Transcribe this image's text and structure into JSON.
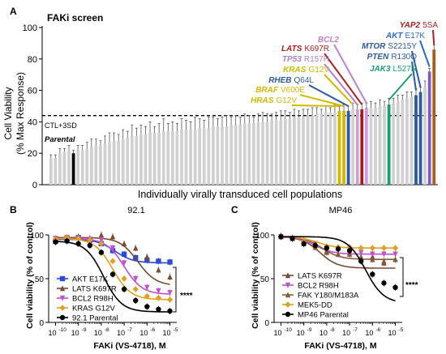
{
  "chart_data": [
    {
      "panel": "A",
      "type": "bar",
      "title": "FAKi screen",
      "xlabel": "Individually virally transduced cell populations",
      "ylabel_line1": "Cell Viability",
      "ylabel_line2": "(% Max Response)",
      "ylim": [
        0,
        100
      ],
      "yticks": [
        "0",
        "20",
        "40",
        "60",
        "80",
        "100"
      ],
      "threshold": {
        "label": "CTL+3SD",
        "value": 44
      },
      "parental_label": "Parental",
      "values": [
        17,
        17,
        20,
        21,
        22,
        20,
        22,
        22,
        23,
        24,
        25,
        25,
        26,
        27,
        28,
        28,
        29,
        30,
        31,
        31,
        32,
        32,
        33,
        33,
        33,
        34,
        34,
        34,
        34,
        35,
        35,
        35,
        35,
        36,
        36,
        36,
        37,
        37,
        37,
        37,
        38,
        38,
        38,
        39,
        39,
        39,
        40,
        40,
        40,
        41,
        41,
        41,
        42,
        42,
        43,
        43,
        43,
        44,
        44,
        45,
        45,
        46,
        46,
        46,
        47,
        47,
        47,
        48,
        48,
        48,
        49,
        49,
        49,
        50,
        50,
        51,
        52,
        53,
        54,
        55,
        56,
        57,
        59,
        62,
        72,
        86
      ],
      "errors": [
        2,
        2,
        3,
        2,
        3,
        2,
        3,
        3,
        4,
        5,
        4,
        3,
        5,
        6,
        5,
        4,
        6,
        4,
        7,
        5,
        6,
        5,
        7,
        4,
        6,
        8,
        5,
        6,
        5,
        7,
        6,
        5,
        8,
        6,
        5,
        7,
        6,
        5,
        6,
        7,
        5,
        6,
        5,
        6,
        5,
        4,
        5,
        6,
        5,
        4,
        5,
        6,
        5,
        4,
        5,
        4,
        5,
        4,
        5,
        4,
        3,
        4,
        3,
        5,
        3,
        4,
        3,
        4,
        3,
        4,
        3,
        4,
        3,
        4,
        3,
        4,
        3,
        4,
        3,
        4,
        3,
        4,
        3,
        4,
        2,
        3
      ],
      "highlighted": [
        {
          "index": 5,
          "color": "#000000"
        },
        {
          "index": 64,
          "color": "#d4b800"
        },
        {
          "index": 65,
          "color": "#d4b800"
        },
        {
          "index": 66,
          "color": "#2b5aa8"
        },
        {
          "index": 68,
          "color": "#c8a0d8"
        },
        {
          "index": 69,
          "color": "#a81818"
        },
        {
          "index": 70,
          "color": "#d09ae0"
        },
        {
          "index": 75,
          "color": "#18a070"
        },
        {
          "index": 81,
          "color": "#2b5aa8"
        },
        {
          "index": 82,
          "color": "#2b5aa8"
        },
        {
          "index": 84,
          "color": "#7b5cc0"
        },
        {
          "index": 85,
          "color": "#b05a1a"
        }
      ],
      "annotations": [
        {
          "gene": "YAP2",
          "variant": "5SA",
          "color": "#b02020",
          "bar": 85
        },
        {
          "gene": "AKT",
          "variant": "E17K",
          "color": "#2b6ad0",
          "bar": 84
        },
        {
          "gene": "BCL2",
          "variant": "",
          "color": "#c080d8",
          "bar": 70
        },
        {
          "gene": "MTOR",
          "variant": "S2215Y",
          "color": "#2b5aa8",
          "bar": 82
        },
        {
          "gene": "LATS",
          "variant": "K697R",
          "color": "#b02020",
          "bar": 69
        },
        {
          "gene": "PTEN",
          "variant": "R130Q",
          "color": "#2b5aa8",
          "bar": 81
        },
        {
          "gene": "TP53",
          "variant": "R157H",
          "color": "#b080d0",
          "bar": 68
        },
        {
          "gene": "JAK3",
          "variant": "L527R",
          "color": "#18a070",
          "bar": 75
        },
        {
          "gene": "KRAS",
          "variant": "G12V",
          "color": "#d4b800",
          "bar": 67
        },
        {
          "gene": "RHEB",
          "variant": "Q64L",
          "color": "#2b5aa8",
          "bar": 66
        },
        {
          "gene": "BRAF",
          "variant": "V600E",
          "color": "#d4b800",
          "bar": 65
        },
        {
          "gene": "HRAS",
          "variant": "G12V",
          "color": "#d4b800",
          "bar": 64
        }
      ]
    },
    {
      "panel": "B",
      "type": "line",
      "title": "92.1",
      "xlabel": "FAKi (VS-4718), M",
      "ylabel": "Cell viability (% of control)",
      "ylim": [
        0,
        100
      ],
      "yticks": [
        "0",
        "50",
        "100"
      ],
      "xticks": [
        "10",
        "10",
        "10",
        "10",
        "10",
        "10"
      ],
      "xtick_exp": [
        "-10",
        "-9",
        "-8",
        "-7",
        "-6",
        "-5"
      ],
      "x_log": [
        -10,
        -9.5,
        -9,
        -8.5,
        -8,
        -7.5,
        -7,
        -6.5,
        -6,
        -5.5,
        -5
      ],
      "significance": "****",
      "series": [
        {
          "name": "AKT E17K",
          "color": "#2b4bd8",
          "marker": "square",
          "top": 95,
          "bottom": 68,
          "logec50": -7.4,
          "values": [
            93,
            96,
            97,
            94,
            90,
            82,
            78,
            74,
            71,
            70,
            69
          ]
        },
        {
          "name": "LATS K697R",
          "color": "#7a4a32",
          "marker": "triangle",
          "top": 97,
          "bottom": 42,
          "logec50": -6.4,
          "values": [
            95,
            97,
            98,
            96,
            100,
            98,
            90,
            85,
            75,
            60,
            52
          ]
        },
        {
          "name": "BCL2 R98H",
          "color": "#c050d0",
          "marker": "triangle-down",
          "top": 96,
          "bottom": 32,
          "logec50": -7.0,
          "values": [
            96,
            97,
            96,
            95,
            94,
            85,
            68,
            50,
            40,
            36,
            34
          ]
        },
        {
          "name": "KRAS G12V",
          "color": "#e0a020",
          "marker": "diamond",
          "top": 96,
          "bottom": 26,
          "logec50": -7.5,
          "values": [
            95,
            97,
            96,
            94,
            90,
            70,
            50,
            38,
            30,
            28,
            26
          ]
        },
        {
          "name": "92.1 Parental",
          "color": "#000000",
          "marker": "circle",
          "top": 93,
          "bottom": 12,
          "logec50": -7.9,
          "values": [
            92,
            93,
            90,
            88,
            80,
            55,
            38,
            25,
            18,
            15,
            13
          ]
        }
      ]
    },
    {
      "panel": "C",
      "type": "line",
      "title": "MP46",
      "xlabel": "FAKi (VS-4718), M",
      "ylabel": "Cell viability (% of control)",
      "ylim": [
        0,
        100
      ],
      "yticks": [
        "0",
        "50",
        "100"
      ],
      "xticks": [
        "10",
        "10",
        "10",
        "10",
        "10",
        "10"
      ],
      "xtick_exp": [
        "-10",
        "-9",
        "-8",
        "-7",
        "-6",
        "-5"
      ],
      "x_log": [
        -10,
        -9.5,
        -9,
        -8.5,
        -8,
        -7.5,
        -7,
        -6.5,
        -6,
        -5.5,
        -5
      ],
      "significance": "****",
      "series": [
        {
          "name": "LATS K697R",
          "color": "#7a4a32",
          "marker": "triangle",
          "top": 98,
          "bottom": 62,
          "logec50": -8.3,
          "values": [
            98,
            96,
            94,
            88,
            82,
            85,
            80,
            72,
            75,
            68,
            72
          ]
        },
        {
          "name": "BCL2 R98H",
          "color": "#c050d0",
          "marker": "triangle-down",
          "top": 98,
          "bottom": 78,
          "logec50": -8.5,
          "values": [
            98,
            96,
            92,
            90,
            84,
            82,
            80,
            80,
            78,
            78,
            78
          ]
        },
        {
          "name": "FAK Y180/M183A",
          "color": "#8a5a3a",
          "marker": "triangle",
          "top": 98,
          "bottom": 72,
          "logec50": -8.2,
          "values": [
            99,
            96,
            90,
            86,
            80,
            78,
            78,
            75,
            72,
            70,
            72
          ]
        },
        {
          "name": "MEK5-DD",
          "color": "#e0a020",
          "marker": "diamond",
          "top": 98,
          "bottom": 85,
          "logec50": -8.4,
          "values": [
            98,
            96,
            92,
            88,
            87,
            86,
            86,
            85,
            85,
            85,
            85
          ]
        },
        {
          "name": "MP46 Parental",
          "color": "#000000",
          "marker": "circle",
          "top": 98,
          "bottom": 22,
          "logec50": -6.3,
          "values": [
            98,
            96,
            90,
            88,
            85,
            84,
            82,
            70,
            55,
            45,
            40
          ]
        }
      ]
    }
  ]
}
